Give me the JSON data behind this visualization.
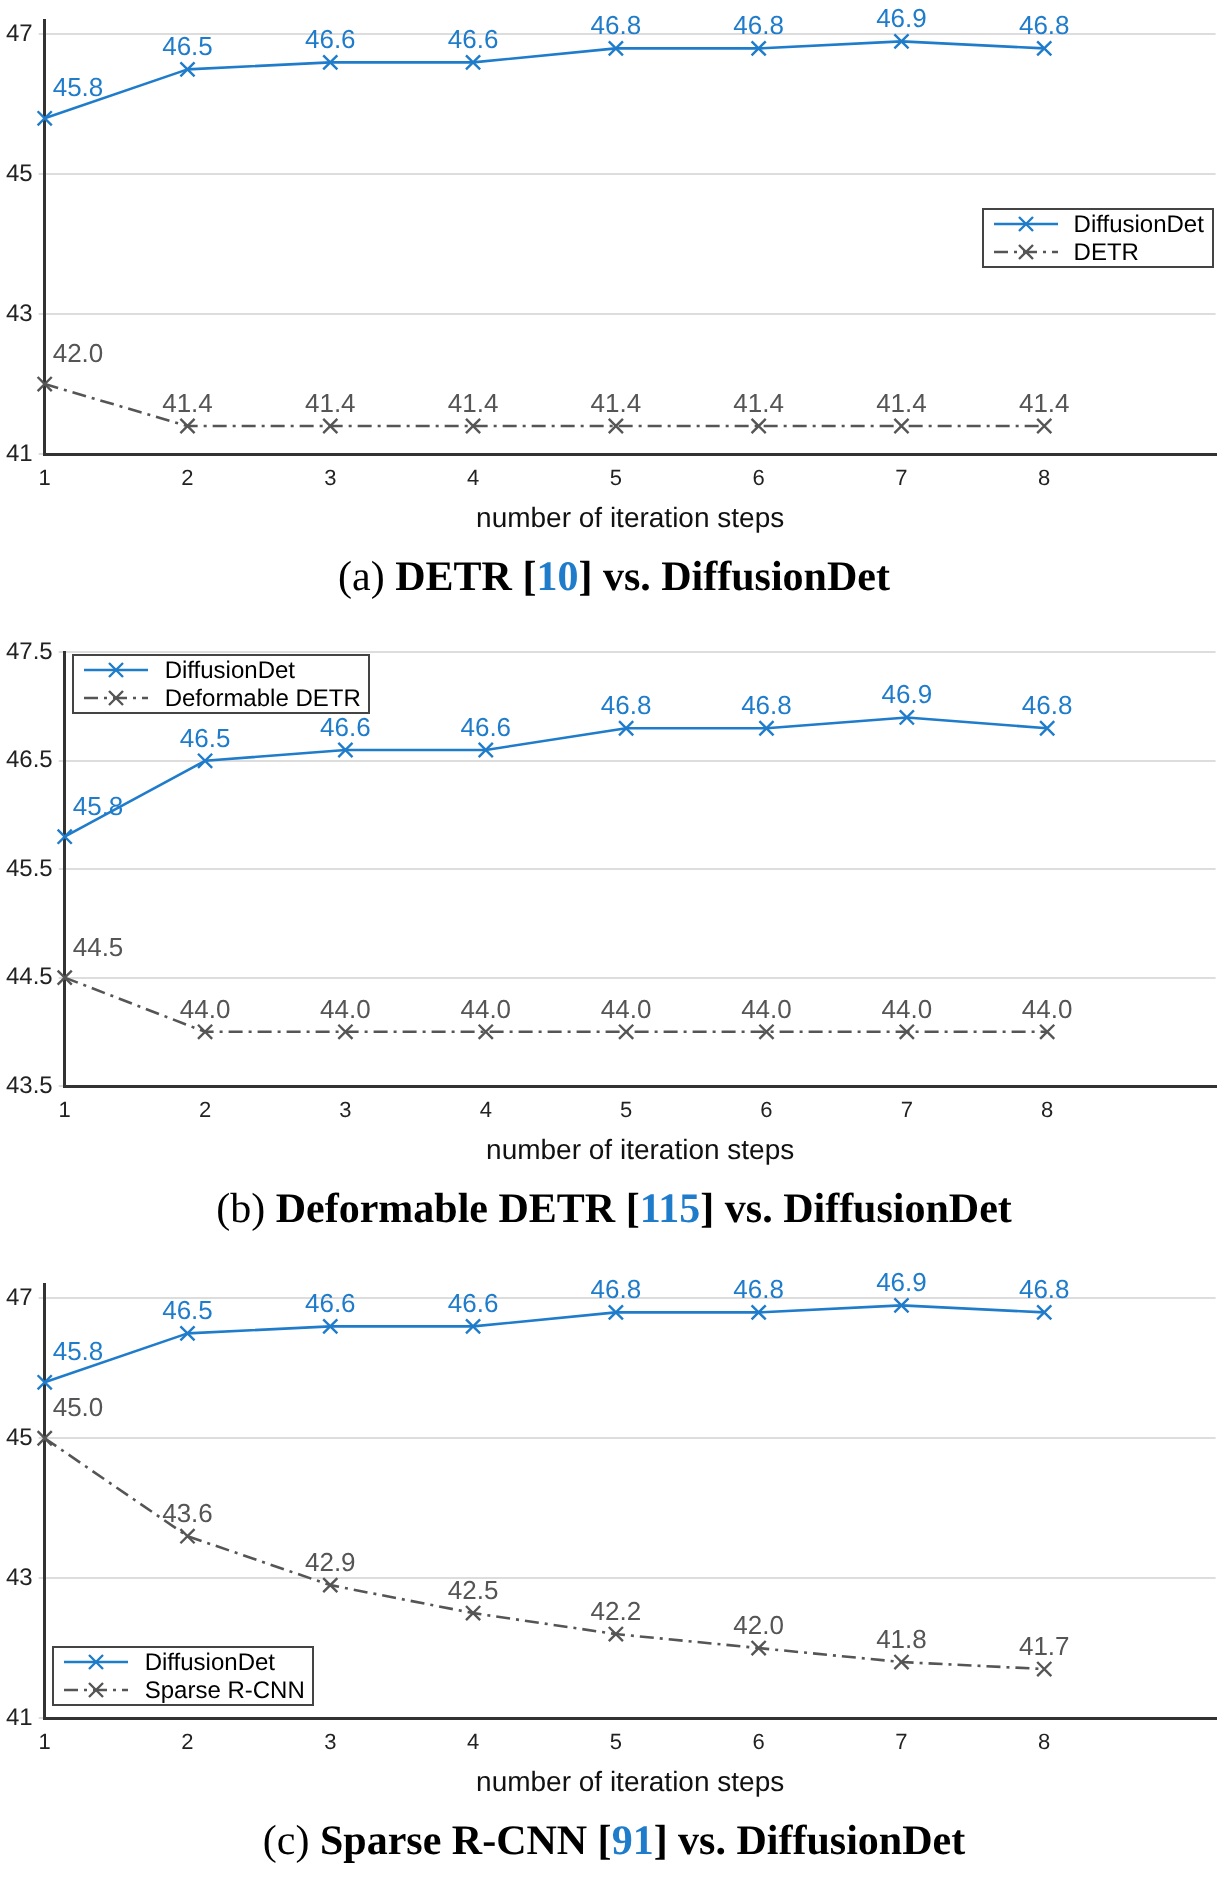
{
  "chart_data": [
    {
      "type": "line",
      "title": "(a) DETR [10] vs. DiffusionDet",
      "xlabel": "number of iteration steps",
      "x": [
        1,
        2,
        3,
        4,
        5,
        6,
        7,
        8
      ],
      "xlim": [
        1,
        9.2
      ],
      "xticks": [
        1,
        2,
        3,
        4,
        5,
        6,
        7,
        8
      ],
      "ylim": [
        41,
        47.2
      ],
      "yticks": [
        41,
        43,
        45,
        47
      ],
      "grid": "y",
      "legend": "right",
      "marker": "cross",
      "series": [
        {
          "name": "DiffusionDet",
          "color": "#1f7ccb",
          "line_style": "solid",
          "values": [
            45.8,
            46.5,
            46.6,
            46.6,
            46.8,
            46.8,
            46.9,
            46.8
          ],
          "value_labels": [
            "45.8",
            "46.5",
            "46.6",
            "46.6",
            "46.8",
            "46.8",
            "46.9",
            "46.8"
          ]
        },
        {
          "name": "DETR",
          "color": "#555555",
          "line_style": "dashed",
          "values": [
            42.0,
            41.4,
            41.4,
            41.4,
            41.4,
            41.4,
            41.4,
            41.4
          ],
          "value_labels": [
            "42.0",
            "41.4",
            "41.4",
            "41.4",
            "41.4",
            "41.4",
            "41.4",
            "41.4"
          ]
        }
      ]
    },
    {
      "type": "line",
      "title": "(b) Deformable DETR [115] vs. DiffusionDet",
      "xlabel": "number of iteration steps",
      "x": [
        1,
        2,
        3,
        4,
        5,
        6,
        7,
        8
      ],
      "xlim": [
        1,
        9.2
      ],
      "xticks": [
        1,
        2,
        3,
        4,
        5,
        6,
        7,
        8
      ],
      "ylim": [
        43.5,
        47.5
      ],
      "yticks": [
        43.5,
        44.5,
        45.5,
        46.5,
        47.5
      ],
      "grid": "y",
      "legend": "top left",
      "marker": "cross",
      "series": [
        {
          "name": "DiffusionDet",
          "color": "#1f7ccb",
          "line_style": "solid",
          "values": [
            45.8,
            46.5,
            46.6,
            46.6,
            46.8,
            46.8,
            46.9,
            46.8
          ],
          "value_labels": [
            "45.8",
            "46.5",
            "46.6",
            "46.6",
            "46.8",
            "46.8",
            "46.9",
            "46.8"
          ]
        },
        {
          "name": "Deformable DETR",
          "color": "#555555",
          "line_style": "dashed",
          "values": [
            44.5,
            44.0,
            44.0,
            44.0,
            44.0,
            44.0,
            44.0,
            44.0
          ],
          "value_labels": [
            "44.5",
            "44.0",
            "44.0",
            "44.0",
            "44.0",
            "44.0",
            "44.0",
            "44.0"
          ]
        }
      ]
    },
    {
      "type": "line",
      "title": "(c) Sparse R-CNN [91] vs. DiffusionDet",
      "xlabel": "number of iteration steps",
      "x": [
        1,
        2,
        3,
        4,
        5,
        6,
        7,
        8
      ],
      "xlim": [
        1,
        9.2
      ],
      "xticks": [
        1,
        2,
        3,
        4,
        5,
        6,
        7,
        8
      ],
      "ylim": [
        41,
        47.2
      ],
      "yticks": [
        41,
        43,
        45,
        47
      ],
      "grid": "y",
      "legend": "bottom left",
      "marker": "cross",
      "series": [
        {
          "name": "DiffusionDet",
          "color": "#1f7ccb",
          "line_style": "solid",
          "values": [
            45.8,
            46.5,
            46.6,
            46.6,
            46.8,
            46.8,
            46.9,
            46.8
          ],
          "value_labels": [
            "45.8",
            "46.5",
            "46.6",
            "46.6",
            "46.8",
            "46.8",
            "46.9",
            "46.8"
          ]
        },
        {
          "name": "Sparse R-CNN",
          "color": "#555555",
          "line_style": "dashed",
          "values": [
            45.0,
            43.6,
            42.9,
            42.5,
            42.2,
            42.0,
            41.8,
            41.7
          ],
          "value_labels": [
            "45.0",
            "43.6",
            "42.9",
            "42.5",
            "42.2",
            "42.0",
            "41.8",
            "41.7"
          ]
        }
      ]
    }
  ]
}
